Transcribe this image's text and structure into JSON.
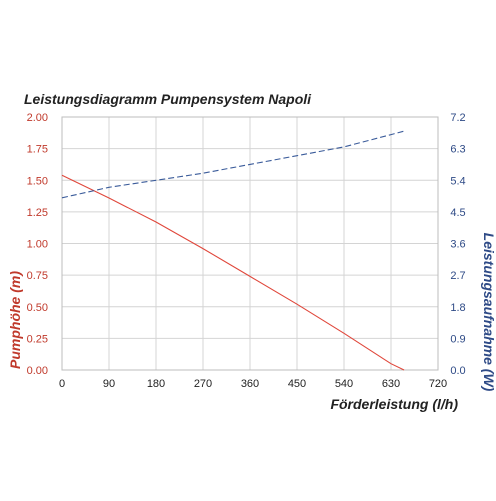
{
  "chart_data": {
    "type": "line",
    "title": "Leistungsdiagramm Pumpensystem Napoli",
    "xlabel": "Förderleistung (l/h)",
    "ylabel": "Pumphöhe (m)",
    "y2label": "Leistungsaufnahme (W)",
    "xlim": [
      0,
      720
    ],
    "ylim": [
      0,
      2.0
    ],
    "y2lim": [
      0,
      7.2
    ],
    "x_ticks": [
      "0",
      "90",
      "180",
      "270",
      "360",
      "450",
      "540",
      "630",
      "720"
    ],
    "y_ticks": [
      "0.00",
      "0.25",
      "0.50",
      "0.75",
      "1.00",
      "1.25",
      "1.50",
      "1.75",
      "2.00"
    ],
    "y2_ticks": [
      "0.0",
      "0.9",
      "1.8",
      "2.7",
      "3.6",
      "4.5",
      "5.4",
      "6.3",
      "7.2"
    ],
    "grid": true,
    "series": [
      {
        "axis": "left",
        "color": "#e0473b",
        "style": "solid",
        "x": [
          0,
          90,
          180,
          270,
          360,
          450,
          540,
          630,
          655
        ],
        "y": [
          1.54,
          1.36,
          1.17,
          0.96,
          0.74,
          0.52,
          0.29,
          0.05,
          0.0
        ]
      },
      {
        "axis": "right",
        "color": "#3a5b9a",
        "style": "dashed",
        "x": [
          0,
          90,
          180,
          270,
          360,
          450,
          540,
          630,
          655
        ],
        "y": [
          4.9,
          5.2,
          5.4,
          5.6,
          5.85,
          6.1,
          6.35,
          6.7,
          6.8
        ]
      }
    ],
    "colors": {
      "left_axis": "#c0392b",
      "right_axis": "#2e4a86",
      "title": "#222222",
      "grid": "#d4d4d4"
    }
  }
}
